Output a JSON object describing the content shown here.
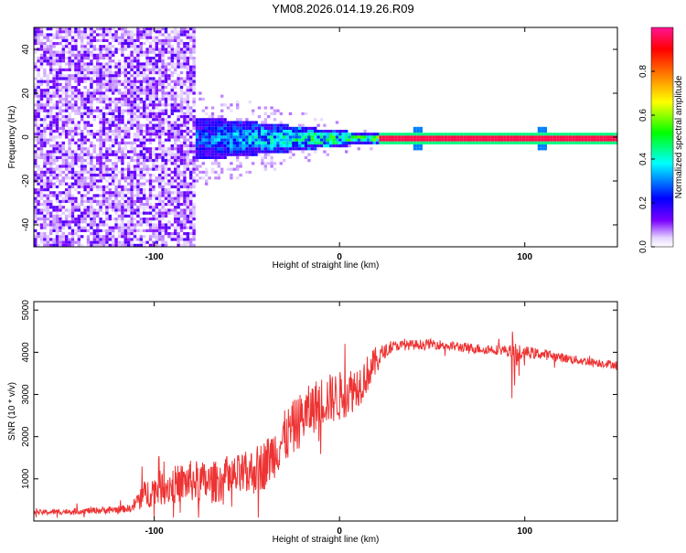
{
  "title": "YM08.2026.014.19.26.R09",
  "chart_data": [
    {
      "type": "heatmap",
      "title": "YM08.2026.014.19.26.R09",
      "xlabel": "Height of straight line (km)",
      "ylabel": "Frequency (Hz)",
      "xlim": [
        -165,
        150
      ],
      "ylim": [
        -50,
        50
      ],
      "xticks": [
        -100,
        0,
        100
      ],
      "xtick_labels": [
        "-100",
        "0",
        "100"
      ],
      "yticks": [
        -40,
        -20,
        0,
        20,
        40
      ],
      "ytick_labels": [
        "-40",
        "-20",
        "0",
        "20",
        "40"
      ],
      "colorbar": {
        "label": "Normalized spectral amplitude",
        "range": [
          0,
          1
        ],
        "ticks": [
          0.0,
          0.2,
          0.4,
          0.6,
          0.8
        ],
        "tick_labels": [
          "0.0",
          "0.2",
          "0.4",
          "0.6",
          "0.8"
        ],
        "colormap": [
          "#ffffff",
          "#6a00ff",
          "#0000ff",
          "#00ffff",
          "#00ff00",
          "#ffff00",
          "#ff8000",
          "#ff0000",
          "#ff1493"
        ]
      },
      "regions": [
        {
          "name": "broadband noise",
          "x": [
            -165,
            -78
          ],
          "freq_range": [
            -50,
            50
          ],
          "amplitude": 0.05
        },
        {
          "name": "narrowing band",
          "x": [
            -78,
            20
          ],
          "freq_halfwidth": [
            10,
            2
          ],
          "amplitude": [
            0.25,
            0.5
          ]
        },
        {
          "name": "tone line",
          "x": [
            20,
            150
          ],
          "freq": 0,
          "amplitude": 0.95
        }
      ]
    },
    {
      "type": "line",
      "xlabel": "Height of straight line (km)",
      "ylabel": "SNR (10 * v/v)",
      "xlim": [
        -165,
        150
      ],
      "ylim": [
        0,
        5200
      ],
      "xticks": [
        -100,
        0,
        100
      ],
      "xtick_labels": [
        "-100",
        "0",
        "100"
      ],
      "yticks": [
        1000,
        2000,
        3000,
        4000,
        5000
      ],
      "ytick_labels": [
        "1000",
        "2000",
        "3000",
        "4000",
        "5000"
      ],
      "series": [
        {
          "name": "SNR",
          "color": "#ee3333",
          "x": [
            -165,
            -130,
            -112,
            -108,
            -100,
            -90,
            -80,
            -70,
            -60,
            -50,
            -40,
            -30,
            -20,
            -10,
            0,
            8,
            12,
            20,
            25,
            30,
            50,
            70,
            90,
            95,
            100,
            110,
            130,
            150
          ],
          "y": [
            200,
            250,
            300,
            550,
            750,
            850,
            950,
            900,
            1000,
            1100,
            1350,
            1950,
            2450,
            2850,
            2950,
            3150,
            3300,
            3800,
            4050,
            4150,
            4200,
            4100,
            4050,
            3950,
            4000,
            3950,
            3800,
            3700
          ],
          "noise_amplitude": [
            60,
            80,
            90,
            300,
            400,
            450,
            500,
            500,
            500,
            550,
            600,
            650,
            650,
            600,
            600,
            550,
            500,
            350,
            150,
            120,
            120,
            120,
            120,
            250,
            150,
            120,
            100,
            100
          ]
        }
      ]
    }
  ]
}
